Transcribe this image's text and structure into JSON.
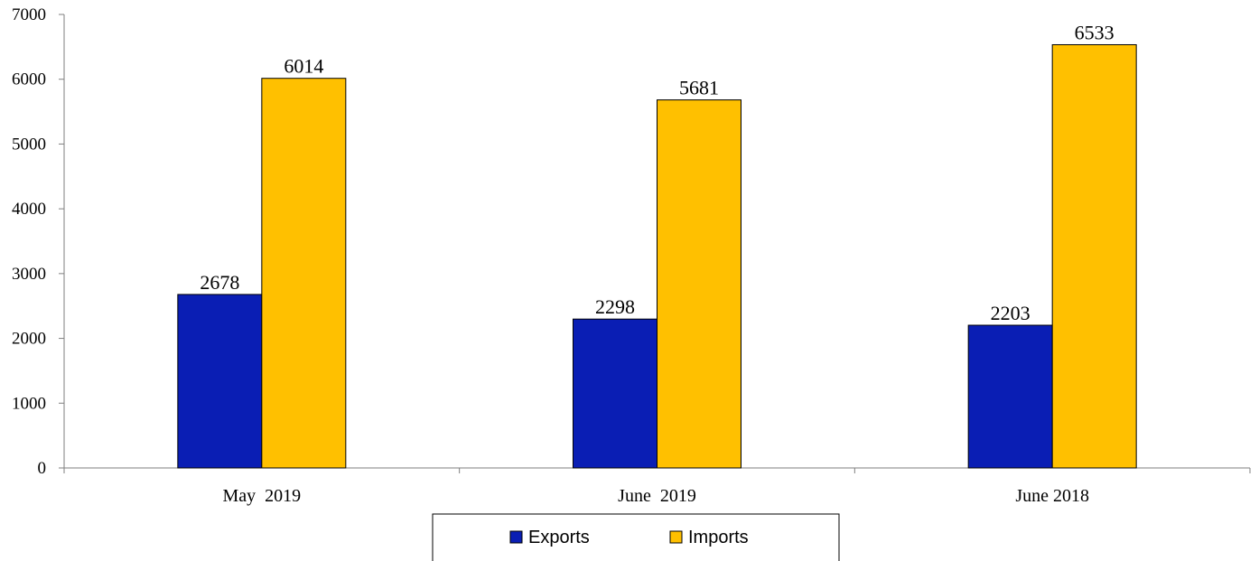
{
  "chart_data": {
    "type": "bar",
    "categories": [
      "May  2019",
      "June  2019",
      "June 2018"
    ],
    "series": [
      {
        "name": "Exports",
        "values": [
          2678,
          2298,
          2203
        ],
        "color": "#0A1EB4"
      },
      {
        "name": "Imports",
        "values": [
          6014,
          5681,
          6533
        ],
        "color": "#FFC000"
      }
    ],
    "ylim": [
      0,
      7000
    ],
    "yticks": [
      0,
      1000,
      2000,
      3000,
      4000,
      5000,
      6000,
      7000
    ],
    "title": "",
    "xlabel": "",
    "ylabel": "",
    "grid": false,
    "legend_position": "bottom",
    "data_labels": true
  }
}
